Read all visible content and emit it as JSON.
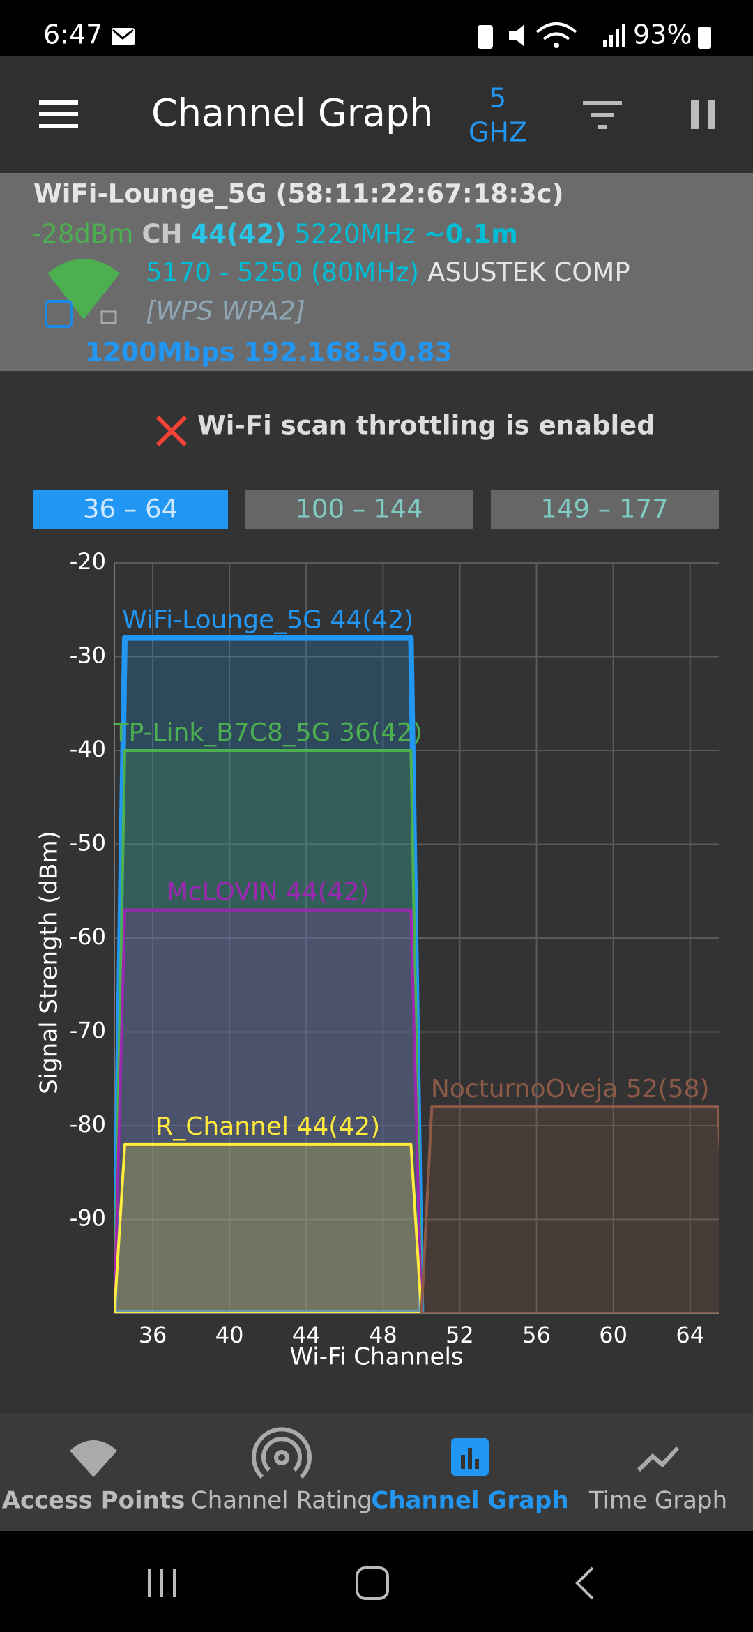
{
  "status_bar": {
    "time": "6:47",
    "battery": "93%"
  },
  "toolbar": {
    "title": "Channel Graph",
    "band_value": "5",
    "band_unit": "GHZ"
  },
  "ap_info": {
    "ssid_line": "WiFi-Lounge_5G (58:11:22:67:18:3c)",
    "signal": "-28dBm",
    "ch_label": "CH",
    "channel": "44(42)",
    "frequency": "5220MHz",
    "distance": "~0.1m",
    "range": "5170 - 5250 (80MHz)",
    "vendor": "ASUSTEK COMP",
    "security": "[WPS WPA2]",
    "speed_ip": "1200Mbps 192.168.50.83"
  },
  "warning": "Wi-Fi scan throttling is enabled",
  "tabs": [
    "36 – 64",
    "100 – 144",
    "149 – 177"
  ],
  "chart_data": {
    "type": "area",
    "x_label": "Wi-Fi Channels",
    "y_label": "Signal Strength (dBm)",
    "xlim": [
      34,
      65.5
    ],
    "xticks": [
      36,
      40,
      44,
      48,
      52,
      56,
      60,
      64
    ],
    "ylim": [
      -100,
      -20
    ],
    "yticks": [
      -20,
      -30,
      -40,
      -50,
      -60,
      -70,
      -80,
      -90
    ],
    "grid": true,
    "series": [
      {
        "name": "WiFi-Lounge_5G 44(42)",
        "color": "#2196f3",
        "range": [
          34,
          50
        ],
        "value": -28
      },
      {
        "name": "TP-Link_B7C8_5G 36(42)",
        "color": "#4caf50",
        "range": [
          34,
          50
        ],
        "value": -40
      },
      {
        "name": "McLOVIN 44(42)",
        "color": "#9c27b0",
        "range": [
          34,
          50
        ],
        "value": -57
      },
      {
        "name": "R_Channel 44(42)",
        "color": "#ffeb3b",
        "range": [
          34,
          50
        ],
        "value": -82
      },
      {
        "name": "NocturnoOveja 52(58)",
        "color": "#8d5a48",
        "range": [
          50,
          66
        ],
        "value": -78
      }
    ]
  },
  "nav": [
    "Access Points",
    "Channel Rating",
    "Channel Graph",
    "Time Graph"
  ]
}
